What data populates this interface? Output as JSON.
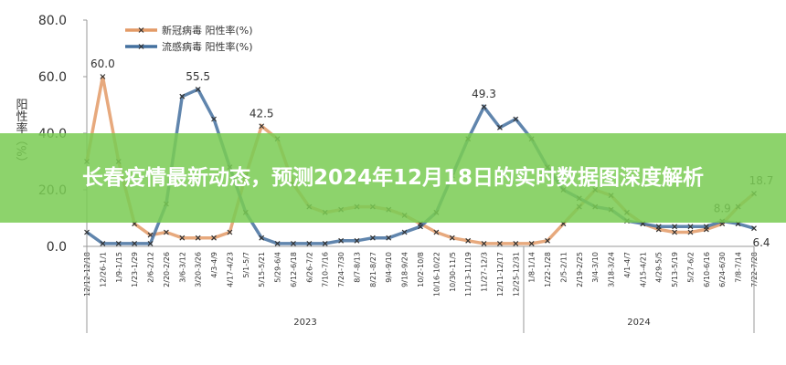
{
  "chart_data": {
    "type": "line",
    "title": "长春疫情最新动态，预测2024年12月18日的实时数据图深度解析",
    "y_label": "阳性率（%）",
    "annotations": [
      "2023",
      "2024"
    ],
    "categories": [
      "12/12-12/18",
      "12/26-1/1",
      "1/9-1/15",
      "1/23-1/29",
      "2/6-2/12",
      "2/20-2/26",
      "3/6-3/12",
      "3/20-3/26",
      "4/3-4/9",
      "4/17-4/23",
      "5/1-5/7",
      "5/15-5/21",
      "5/29-6/4",
      "6/12-6/18",
      "6/26-7/2",
      "7/10-7/16",
      "7/24-7/30",
      "8/7-8/13",
      "8/21-8/27",
      "9/4-9/10",
      "9/18-9/24",
      "10/2-10/8",
      "10/16-10/22",
      "10/30-11/5",
      "11/13-11/19",
      "11/27-12/3",
      "12/11-12/17",
      "12/25-12/31",
      "1/8-1/14",
      "1/22-1/28",
      "2/5-2/11",
      "2/19-2/25",
      "3/4-3/10",
      "3/18-3/24",
      "4/1-4/7",
      "4/15-4/21",
      "4/29-5/5",
      "5/13-5/19",
      "5/27-6/2",
      "6/10-6/16",
      "6/24-6/30",
      "7/8-7/14",
      "7/22-7/28"
    ],
    "series": [
      {
        "name": "新冠病毒 阳性率(%)",
        "color": "#e39a66",
        "values": [
          30,
          60.0,
          30,
          8,
          4,
          5,
          3,
          3,
          3,
          5,
          25,
          42.5,
          38,
          22,
          14,
          12,
          13,
          14,
          14,
          13,
          11,
          8,
          5,
          3,
          2,
          1,
          1,
          1,
          1,
          2,
          8,
          14,
          20,
          18,
          12,
          8,
          6,
          5,
          5,
          6,
          8,
          14,
          18.7
        ],
        "value_labels": [
          null,
          "60.0",
          null,
          null,
          null,
          null,
          null,
          null,
          null,
          null,
          null,
          "42.5",
          null,
          null,
          null,
          null,
          null,
          null,
          null,
          null,
          null,
          null,
          null,
          null,
          null,
          null,
          null,
          null,
          null,
          null,
          null,
          null,
          null,
          null,
          null,
          null,
          null,
          null,
          null,
          null,
          null,
          null,
          "18.7"
        ]
      },
      {
        "name": "流感病毒 阳性率(%)",
        "color": "#44709f",
        "values": [
          5,
          1,
          1,
          1,
          1,
          15,
          53,
          55.5,
          45,
          28,
          12,
          3,
          1,
          1,
          1,
          1,
          2,
          2,
          3,
          3,
          5,
          7,
          12,
          25,
          38,
          49.3,
          42,
          45,
          38,
          28,
          20,
          17,
          14,
          13,
          9,
          8,
          7,
          7,
          7,
          7,
          8.9,
          8,
          6.4
        ],
        "value_labels": [
          null,
          null,
          null,
          null,
          null,
          null,
          null,
          "55.5",
          null,
          null,
          null,
          null,
          null,
          null,
          null,
          null,
          null,
          null,
          null,
          null,
          null,
          null,
          null,
          null,
          null,
          "49.3",
          null,
          null,
          null,
          null,
          null,
          null,
          null,
          null,
          null,
          null,
          null,
          null,
          null,
          null,
          "8.9",
          null,
          "6.4"
        ]
      }
    ],
    "ylim": [
      0,
      80
    ],
    "yticks": [
      {
        "value": 0,
        "label": "0.0"
      },
      {
        "value": 20,
        "label": "20.0"
      },
      {
        "value": 40,
        "label": "40.0"
      },
      {
        "value": 60,
        "label": "60.0"
      },
      {
        "value": 80,
        "label": "80.0"
      }
    ]
  }
}
